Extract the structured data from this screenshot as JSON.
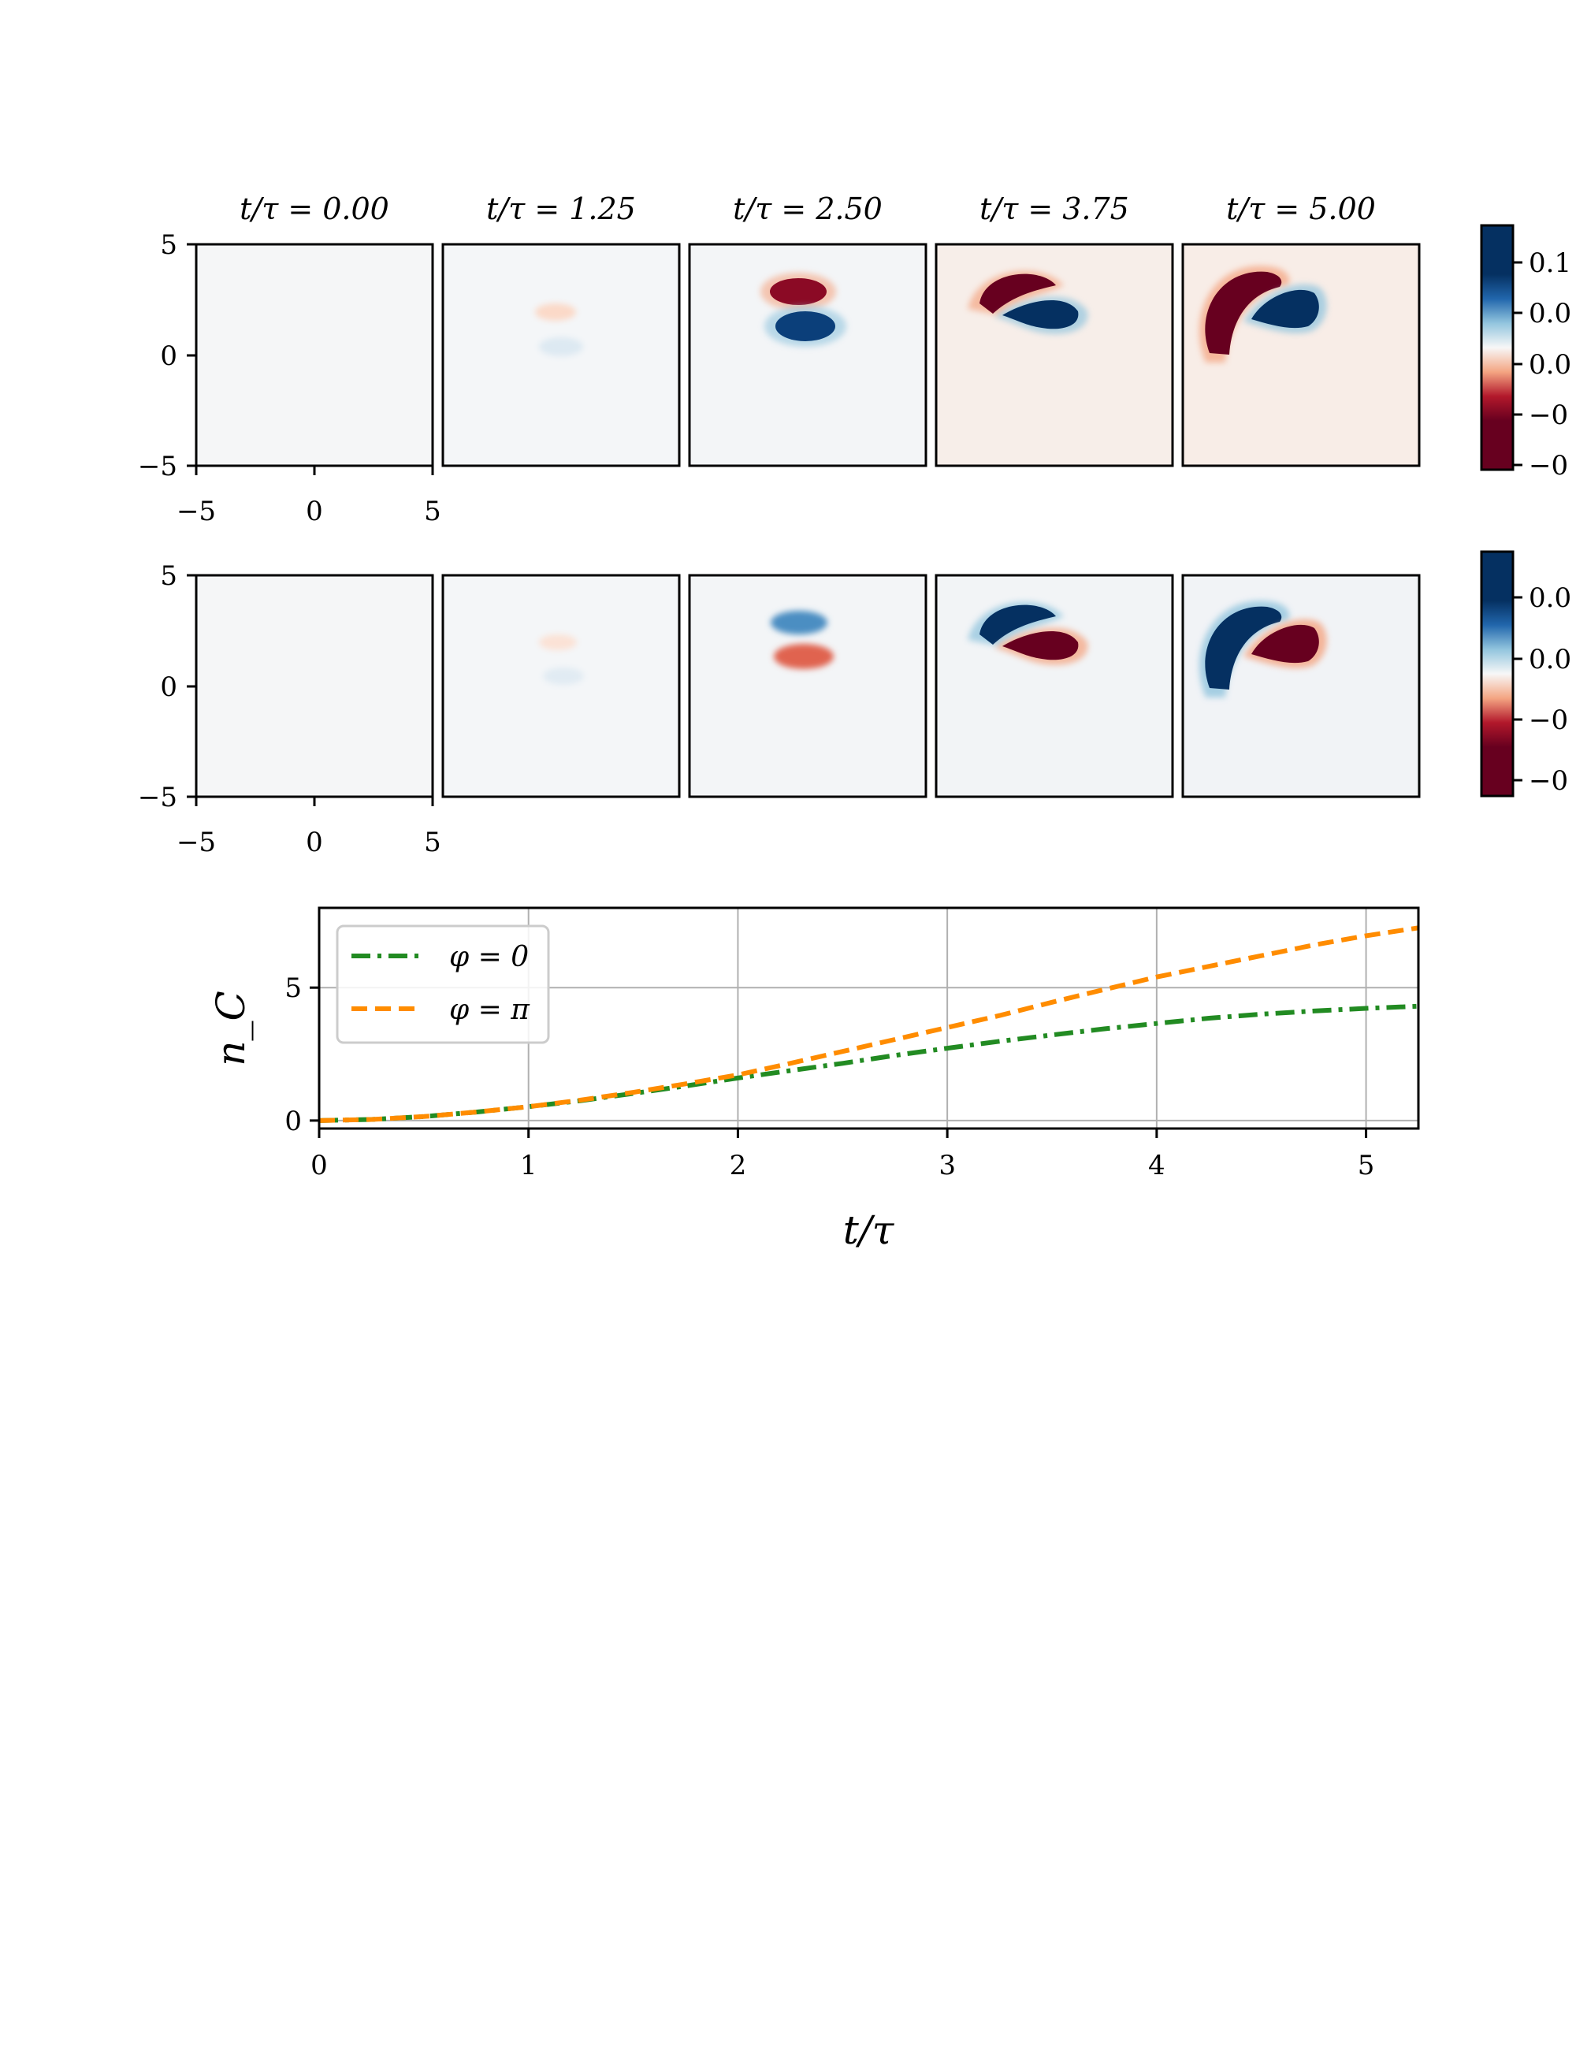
{
  "figure": {
    "panel_titles": [
      "t/τ = 0.00",
      "t/τ = 1.25",
      "t/τ = 2.50",
      "t/τ = 3.75",
      "t/τ = 5.00"
    ],
    "heatmap_axis": {
      "ticks": [
        "−5",
        "0",
        "5"
      ],
      "range": [
        -5,
        5
      ]
    },
    "colors": {
      "positive": "#053061",
      "negative": "#67001f",
      "background": "#f7f7f7",
      "curve_phi0": "#228b22",
      "curve_phipi": "#ff8c00"
    },
    "colorbar_rows": [
      {
        "tick_labels": [
          "0.1",
          "0.0",
          "0.0",
          "−0",
          "−0"
        ]
      },
      {
        "tick_labels": [
          "0.0",
          "0.0",
          "−0",
          "−0"
        ]
      }
    ]
  },
  "chart_data": [
    {
      "type": "heatmap",
      "row": 1,
      "times": [
        0.0,
        1.25,
        2.5,
        3.75,
        5.0
      ],
      "xlim": [
        -5,
        5
      ],
      "ylim": [
        -5,
        5
      ],
      "colormap": "RdBu"
    },
    {
      "type": "heatmap",
      "row": 2,
      "times": [
        0.0,
        1.25,
        2.5,
        3.75,
        5.0
      ],
      "xlim": [
        -5,
        5
      ],
      "ylim": [
        -5,
        5
      ],
      "colormap": "RdBu"
    },
    {
      "type": "line",
      "xlabel": "t/τ",
      "ylabel": "n_C",
      "xlim": [
        0,
        5.25
      ],
      "ylim": [
        -0.3,
        8
      ],
      "xticks": [
        "0",
        "1",
        "2",
        "3",
        "4",
        "5"
      ],
      "yticks": [
        "0",
        "5"
      ],
      "grid": true,
      "legend_position": "top-left",
      "series": [
        {
          "name": "φ = 0",
          "style": "dashdot",
          "x": [
            0,
            0.25,
            0.5,
            0.75,
            1,
            1.25,
            1.5,
            1.75,
            2,
            2.25,
            2.5,
            2.75,
            3,
            3.25,
            3.5,
            3.75,
            4,
            4.25,
            4.5,
            4.75,
            5,
            5.25
          ],
          "y": [
            0,
            0.04,
            0.15,
            0.32,
            0.52,
            0.75,
            1.02,
            1.3,
            1.6,
            1.88,
            2.15,
            2.45,
            2.72,
            2.98,
            3.22,
            3.45,
            3.65,
            3.85,
            4.0,
            4.12,
            4.22,
            4.3
          ]
        },
        {
          "name": "φ = π",
          "style": "dashed",
          "x": [
            0,
            0.25,
            0.5,
            0.75,
            1,
            1.25,
            1.5,
            1.75,
            2,
            2.25,
            2.5,
            2.75,
            3,
            3.25,
            3.5,
            3.75,
            4,
            4.25,
            4.5,
            4.75,
            5,
            5.25
          ],
          "y": [
            0,
            0.04,
            0.15,
            0.32,
            0.52,
            0.77,
            1.06,
            1.38,
            1.72,
            2.15,
            2.6,
            3.05,
            3.5,
            3.95,
            4.45,
            4.93,
            5.4,
            5.8,
            6.2,
            6.6,
            6.95,
            7.25
          ]
        }
      ]
    }
  ]
}
